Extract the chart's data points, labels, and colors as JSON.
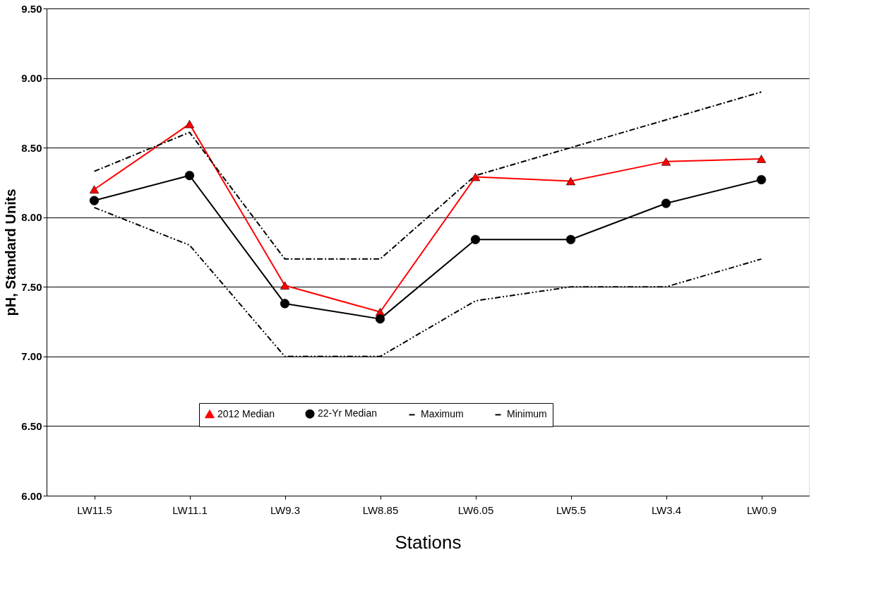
{
  "chart_data": {
    "type": "line",
    "xlabel": "Stations",
    "ylabel": "pH, Standard Units",
    "categories": [
      "LW11.5",
      "LW11.1",
      "LW9.3",
      "LW8.85",
      "LW6.05",
      "LW5.5",
      "LW3.4",
      "LW0.9"
    ],
    "series": [
      {
        "name": "2012 Median",
        "color": "#ff0000",
        "marker": "triangle",
        "line_style": "solid",
        "values": [
          8.2,
          8.67,
          7.51,
          7.32,
          8.29,
          8.26,
          8.4,
          8.42
        ]
      },
      {
        "name": "22-Yr Median",
        "color": "#000000",
        "marker": "circle",
        "line_style": "solid",
        "values": [
          8.12,
          8.3,
          7.38,
          7.27,
          7.84,
          7.84,
          8.1,
          8.27
        ]
      },
      {
        "name": "Maximum",
        "color": "#000000",
        "marker": "none",
        "line_style": "dashdot",
        "values": [
          8.33,
          8.61,
          7.7,
          7.7,
          8.3,
          8.5,
          8.7,
          8.9
        ]
      },
      {
        "name": "Minimum",
        "color": "#000000",
        "marker": "none",
        "line_style": "dashdotdot",
        "values": [
          8.07,
          7.8,
          7.0,
          7.0,
          7.4,
          7.5,
          7.5,
          7.7
        ]
      }
    ],
    "ylim": [
      6.0,
      9.5
    ],
    "yticks": [
      {
        "value": 6.0,
        "label": "6.00"
      },
      {
        "value": 6.5,
        "label": "6.50"
      },
      {
        "value": 7.0,
        "label": "7.00"
      },
      {
        "value": 7.5,
        "label": "7.50"
      },
      {
        "value": 8.0,
        "label": "8.00"
      },
      {
        "value": 8.5,
        "label": "8.50"
      },
      {
        "value": 9.0,
        "label": "9.00"
      },
      {
        "value": 9.5,
        "label": "9.50"
      }
    ],
    "grid": "y",
    "legend": "bottom"
  }
}
